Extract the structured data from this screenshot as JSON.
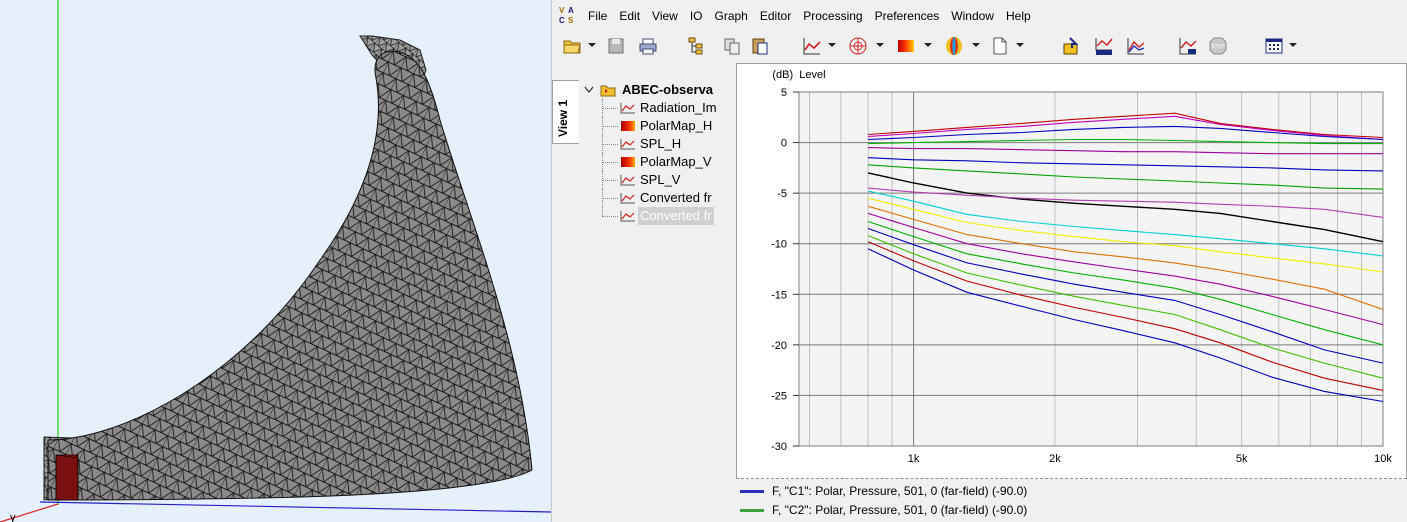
{
  "menu": {
    "items": [
      "File",
      "Edit",
      "View",
      "IO",
      "Graph",
      "Editor",
      "Processing",
      "Preferences",
      "Window",
      "Help"
    ]
  },
  "logo": {
    "letters": [
      "V",
      "A",
      "C",
      "S"
    ]
  },
  "viewport": {
    "axis_label": "y"
  },
  "sidebar": {
    "tab_label": "View 1"
  },
  "tree": {
    "root": "ABEC-observa",
    "children": [
      {
        "label": "Radiation_Im",
        "icon": "curve-icon"
      },
      {
        "label": "PolarMap_H",
        "icon": "polarmap-icon"
      },
      {
        "label": "SPL_H",
        "icon": "curve-icon"
      },
      {
        "label": "PolarMap_V",
        "icon": "polarmap-icon"
      },
      {
        "label": "SPL_V",
        "icon": "curve-icon"
      },
      {
        "label": "Converted fr",
        "icon": "curve-icon"
      },
      {
        "label": "Converted fr",
        "icon": "curve-icon",
        "selected": true
      }
    ]
  },
  "chart_data": {
    "type": "line",
    "ylabel": "(dB)  Level",
    "xlabel": "",
    "xscale": "log",
    "xlim": [
      570,
      10000
    ],
    "ylim": [
      -30,
      5
    ],
    "x_tick_labels": [
      {
        "x": 1000,
        "label": "1k"
      },
      {
        "x": 2000,
        "label": "2k"
      },
      {
        "x": 5000,
        "label": "5k"
      },
      {
        "x": 10000,
        "label": "10k"
      }
    ],
    "y_tick_labels": [
      {
        "y": 5,
        "label": "5"
      },
      {
        "y": 0,
        "label": "0"
      },
      {
        "y": -5,
        "label": "-5"
      },
      {
        "y": -10,
        "label": "-10"
      },
      {
        "y": -15,
        "label": "-15"
      },
      {
        "y": -20,
        "label": "-20"
      },
      {
        "y": -25,
        "label": "-25"
      },
      {
        "y": -30,
        "label": "-30"
      }
    ],
    "grid": true,
    "x": [
      800,
      1000,
      1300,
      1700,
      2200,
      2800,
      3600,
      4500,
      5800,
      7500,
      10000
    ],
    "series": [
      {
        "color": "#c00000",
        "values": [
          0.8,
          1.1,
          1.5,
          1.9,
          2.3,
          2.6,
          2.9,
          1.9,
          1.3,
          0.8,
          0.5
        ]
      },
      {
        "color": "#c000c0",
        "values": [
          0.6,
          0.9,
          1.3,
          1.6,
          2.0,
          2.3,
          2.6,
          1.8,
          1.2,
          0.7,
          0.3
        ]
      },
      {
        "color": "#0000c0",
        "values": [
          0.3,
          0.5,
          0.8,
          1.0,
          1.3,
          1.5,
          1.6,
          1.4,
          1.0,
          0.6,
          0.3
        ]
      },
      {
        "color": "#00b000",
        "values": [
          -0.1,
          0.0,
          0.1,
          0.2,
          0.3,
          0.3,
          0.2,
          0.1,
          0.0,
          -0.1,
          -0.1
        ]
      },
      {
        "color": "#a000a0",
        "values": [
          -0.5,
          -0.6,
          -0.6,
          -0.7,
          -0.8,
          -0.9,
          -0.9,
          -1.0,
          -1.1,
          -1.1,
          -1.1
        ]
      },
      {
        "color": "#0000c0",
        "values": [
          -1.5,
          -1.7,
          -1.8,
          -2.0,
          -2.1,
          -2.2,
          -2.3,
          -2.4,
          -2.5,
          -2.7,
          -2.8
        ]
      },
      {
        "color": "#00a000",
        "values": [
          -2.2,
          -2.5,
          -2.8,
          -3.1,
          -3.4,
          -3.6,
          -3.8,
          -4.0,
          -4.2,
          -4.5,
          -4.6
        ]
      },
      {
        "color": "#000000",
        "values": [
          -3.0,
          -4.0,
          -5.0,
          -5.6,
          -6.0,
          -6.3,
          -6.6,
          -7.0,
          -7.8,
          -8.6,
          -9.8
        ]
      },
      {
        "color": "#b040b0",
        "values": [
          -4.5,
          -4.9,
          -5.2,
          -5.5,
          -5.7,
          -5.8,
          -5.9,
          -6.1,
          -6.3,
          -6.6,
          -7.4
        ]
      },
      {
        "color": "#00d0d0",
        "values": [
          -4.8,
          -5.8,
          -7.1,
          -7.8,
          -8.3,
          -8.7,
          -9.1,
          -9.5,
          -10.0,
          -10.5,
          -11.2
        ]
      },
      {
        "color": "#f0f000",
        "values": [
          -5.5,
          -6.6,
          -7.9,
          -8.7,
          -9.3,
          -9.8,
          -10.2,
          -10.8,
          -11.4,
          -12.0,
          -12.8
        ]
      },
      {
        "color": "#e07000",
        "values": [
          -6.3,
          -7.6,
          -9.1,
          -10.0,
          -10.8,
          -11.3,
          -11.9,
          -12.6,
          -13.5,
          -14.5,
          -16.5
        ]
      },
      {
        "color": "#a000a0",
        "values": [
          -7.0,
          -8.4,
          -10.0,
          -11.0,
          -11.8,
          -12.5,
          -13.2,
          -14.0,
          -15.2,
          -16.5,
          -18.0
        ]
      },
      {
        "color": "#00b000",
        "values": [
          -7.8,
          -9.3,
          -11.0,
          -12.0,
          -12.9,
          -13.6,
          -14.4,
          -15.5,
          -17.0,
          -18.5,
          -20.0
        ]
      },
      {
        "color": "#0000c0",
        "values": [
          -8.5,
          -10.1,
          -11.9,
          -13.0,
          -14.0,
          -14.8,
          -15.6,
          -17.0,
          -18.7,
          -20.5,
          -21.8
        ]
      },
      {
        "color": "#40c000",
        "values": [
          -9.2,
          -11.0,
          -12.9,
          -14.1,
          -15.2,
          -16.1,
          -17.0,
          -18.5,
          -20.3,
          -21.8,
          -23.3
        ]
      },
      {
        "color": "#c00000",
        "values": [
          -9.8,
          -11.7,
          -13.7,
          -15.1,
          -16.3,
          -17.3,
          -18.4,
          -19.8,
          -21.7,
          -23.3,
          -24.5
        ]
      },
      {
        "color": "#0000c0",
        "values": [
          -10.5,
          -12.6,
          -14.8,
          -16.2,
          -17.5,
          -18.6,
          -19.8,
          -21.3,
          -23.2,
          -24.6,
          -25.6
        ]
      }
    ]
  },
  "legend": [
    {
      "color": "#3030c0",
      "label": "F, \"C1\": Polar, Pressure, 501, 0 (far-field) (-90.0)"
    },
    {
      "color": "#40a040",
      "label": "F, \"C2\": Polar, Pressure, 501, 0 (far-field) (-90.0)"
    }
  ]
}
